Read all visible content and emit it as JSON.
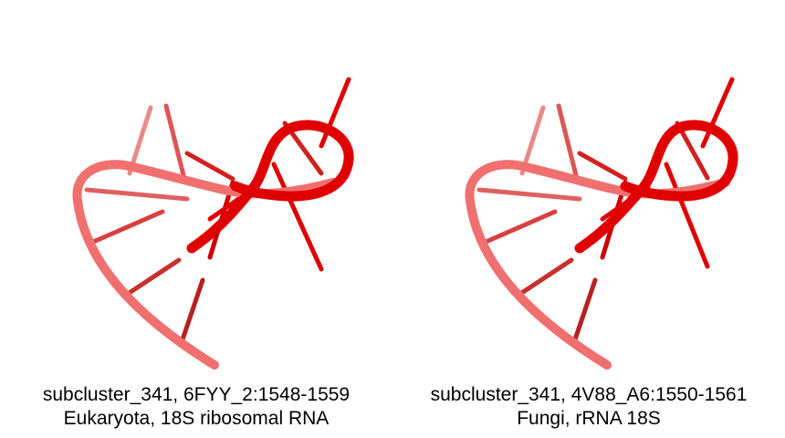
{
  "panels": [
    {
      "caption_line1": "subcluster_341, 6FYY_2:1548-1559",
      "caption_line2": "Eukaryota, 18S ribosomal RNA"
    },
    {
      "caption_line1": "subcluster_341, 4V88_A6:1550-1561",
      "caption_line2": "Fungi, rRNA 18S"
    }
  ],
  "colors": {
    "backbone_light": "#f07070",
    "backbone_dark": "#e00000",
    "base_light": "#e04040",
    "base_dark": "#cc0000"
  }
}
